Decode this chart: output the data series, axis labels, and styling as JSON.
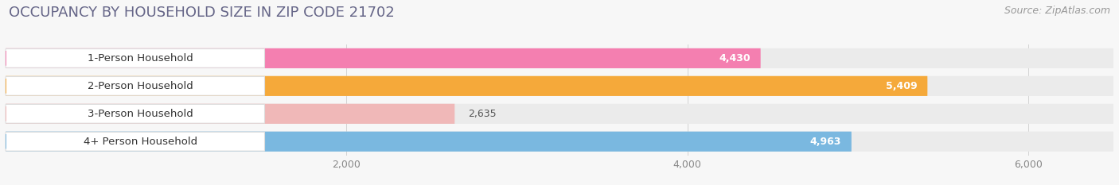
{
  "title": "OCCUPANCY BY HOUSEHOLD SIZE IN ZIP CODE 21702",
  "source": "Source: ZipAtlas.com",
  "categories": [
    "1-Person Household",
    "2-Person Household",
    "3-Person Household",
    "4+ Person Household"
  ],
  "values": [
    4430,
    5409,
    2635,
    4963
  ],
  "bar_colors": [
    "#f47fb0",
    "#f5a93a",
    "#f0b8b8",
    "#7ab8e0"
  ],
  "bg_row_color": "#ebebeb",
  "background_color": "#f7f7f7",
  "xlim_max": 6500,
  "xticks": [
    2000,
    4000,
    6000
  ],
  "title_color": "#666688",
  "title_fontsize": 13,
  "source_fontsize": 9,
  "bar_label_fontsize": 9,
  "category_fontsize": 9.5,
  "tick_fontsize": 9,
  "value_label_3person_color": "#666666"
}
